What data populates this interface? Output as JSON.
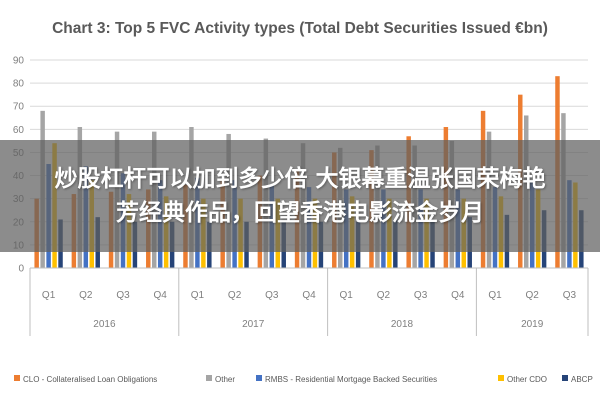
{
  "chart_data": {
    "type": "bar",
    "title": "Chart 3: Top 5 FVC Activity types (Total Debt Securities Issued €bn)",
    "xlabel": "",
    "ylabel": "",
    "ylim": [
      0,
      90
    ],
    "yticks": [
      0,
      10,
      20,
      30,
      40,
      50,
      60,
      70,
      80,
      90
    ],
    "grid": true,
    "legend_position": "bottom",
    "categories": [
      "Q1",
      "Q2",
      "Q3",
      "Q4",
      "Q1",
      "Q2",
      "Q3",
      "Q4",
      "Q1",
      "Q2",
      "Q3",
      "Q4",
      "Q1",
      "Q2",
      "Q3"
    ],
    "groups": [
      {
        "label": "2016",
        "span": 4
      },
      {
        "label": "2017",
        "span": 4
      },
      {
        "label": "2018",
        "span": 4
      },
      {
        "label": "2019",
        "span": 3
      }
    ],
    "series": [
      {
        "name": "CLO - Collateralised Loan Obligations",
        "color": "#ED7D31",
        "values": [
          30,
          32,
          33,
          34,
          36,
          38,
          40,
          42,
          50,
          51,
          57,
          61,
          68,
          75,
          83
        ]
      },
      {
        "name": "Other",
        "color": "#A5A5A5",
        "values": [
          68,
          61,
          59,
          59,
          61,
          58,
          56,
          54,
          52,
          53,
          53,
          55,
          59,
          66,
          67
        ]
      },
      {
        "name": "RMBS - Residential Mortgage Backed Securities",
        "color": "#4472C4",
        "values": [
          45,
          44,
          41,
          38,
          39,
          38,
          36,
          35,
          34,
          34,
          34,
          34,
          35,
          37,
          38
        ]
      },
      {
        "name": "Other CDO",
        "color": "#FFC000",
        "values": [
          54,
          38,
          32,
          31,
          30,
          30,
          30,
          30,
          31,
          30,
          30,
          30,
          31,
          34,
          37
        ]
      },
      {
        "name": "ABCP",
        "color": "#264478",
        "values": [
          21,
          22,
          20,
          20,
          20,
          20,
          20,
          20,
          20,
          21,
          21,
          22,
          23,
          25,
          25
        ]
      }
    ]
  },
  "overlay": {
    "line1": "炒股杠杆可以加到多少倍 大银幕重温张国荣梅艳",
    "line2": "芳经典作品，回望香港电影流金岁月"
  }
}
